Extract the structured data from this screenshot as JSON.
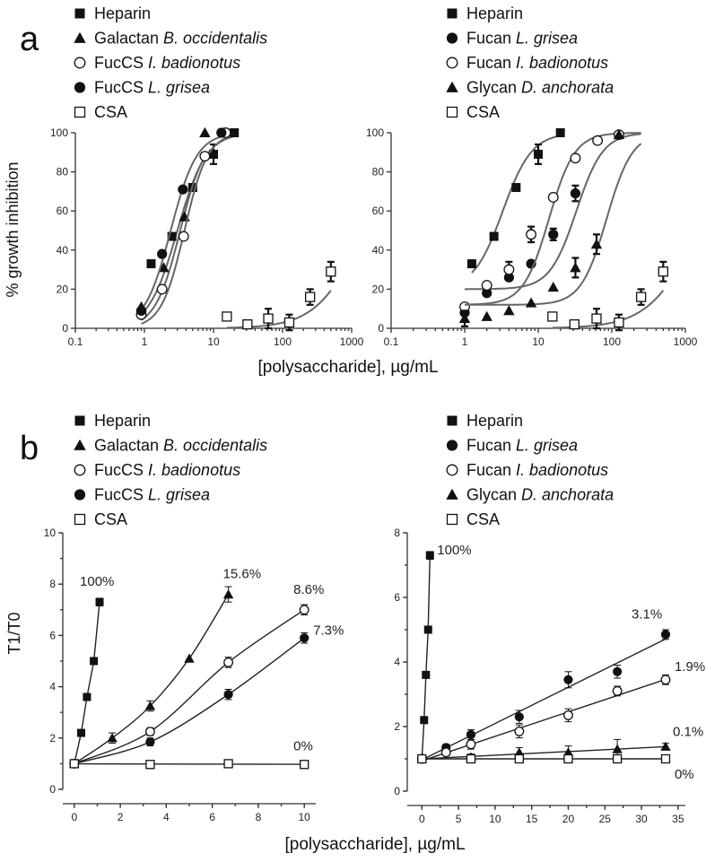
{
  "panel_labels": {
    "a": "a",
    "b": "b"
  },
  "axis_labels": {
    "a_y": "% growth inhibition",
    "a_x": "[polysaccharide], µg/mL",
    "b_y": "T1/T0",
    "b_x": "[polysaccharide], µg/mL"
  },
  "legends": {
    "left": [
      {
        "marker": "filled-square",
        "prefix": "Heparin",
        "italic": ""
      },
      {
        "marker": "filled-triangle",
        "prefix": "Galactan ",
        "italic": "B. occidentalis"
      },
      {
        "marker": "open-circle",
        "prefix": "FucCS ",
        "italic": "I. badionotus"
      },
      {
        "marker": "filled-circle",
        "prefix": "FucCS ",
        "italic": "L. grisea"
      },
      {
        "marker": "open-square",
        "prefix": "CSA",
        "italic": ""
      }
    ],
    "right": [
      {
        "marker": "filled-square",
        "prefix": "Heparin",
        "italic": ""
      },
      {
        "marker": "filled-circle",
        "prefix": "Fucan ",
        "italic": "L. grisea"
      },
      {
        "marker": "open-circle",
        "prefix": "Fucan ",
        "italic": "I. badionotus"
      },
      {
        "marker": "filled-triangle",
        "prefix": "Glycan ",
        "italic": "D. anchorata"
      },
      {
        "marker": "open-square",
        "prefix": "CSA",
        "italic": ""
      }
    ]
  },
  "colors": {
    "marker": "#111111",
    "curve": "#666666",
    "axis": "#333333"
  },
  "chart_data": [
    {
      "id": "a-left",
      "type": "scatter",
      "x_scale": "log",
      "xlim": [
        0.1,
        1000
      ],
      "ylim": [
        0,
        100
      ],
      "x_ticks": [
        0.1,
        1,
        10,
        100,
        1000
      ],
      "x_tick_labels": [
        "0.1",
        "1",
        "10",
        "100",
        "1000"
      ],
      "y_ticks": [
        0,
        20,
        40,
        60,
        80,
        100
      ],
      "y_tick_labels": [
        "0",
        "20",
        "40",
        "60",
        "80",
        "100"
      ],
      "series": [
        {
          "marker": "filled-square",
          "x": [
            1.25,
            2.5,
            5,
            10,
            20
          ],
          "y": [
            33,
            47,
            72,
            89,
            100
          ],
          "err": [
            0,
            0,
            0,
            5,
            0
          ],
          "fit": {
            "bottom": 0,
            "top": 100,
            "ec50": 3.0,
            "hill": 2.1,
            "xmin": 0.95,
            "xmax": 20
          }
        },
        {
          "marker": "filled-triangle",
          "x": [
            0.9,
            1.9,
            3.8,
            7.5
          ],
          "y": [
            11,
            31,
            57,
            100
          ],
          "err": [
            0,
            0,
            0,
            0
          ],
          "fit": {
            "bottom": 0,
            "top": 100,
            "ec50": 3.3,
            "hill": 2.4,
            "xmin": 0.9,
            "xmax": 8
          }
        },
        {
          "marker": "open-circle",
          "x": [
            0.9,
            1.8,
            3.7,
            7.5,
            15
          ],
          "y": [
            7,
            20,
            47,
            88,
            100
          ],
          "err": [
            0,
            0,
            0,
            0,
            0
          ],
          "fit": {
            "bottom": 0,
            "top": 100,
            "ec50": 3.8,
            "hill": 2.6,
            "xmin": 0.9,
            "xmax": 15
          }
        },
        {
          "marker": "filled-circle",
          "x": [
            0.9,
            1.8,
            3.6,
            13
          ],
          "y": [
            9,
            38,
            71,
            100
          ],
          "err": [
            0,
            0,
            0,
            0
          ],
          "fit": {
            "bottom": 0,
            "top": 100,
            "ec50": 2.4,
            "hill": 2.3,
            "xmin": 0.9,
            "xmax": 13
          }
        },
        {
          "marker": "open-square",
          "x": [
            15.6,
            31,
            62,
            125,
            250,
            500
          ],
          "y": [
            6,
            2,
            5,
            3,
            16,
            29
          ],
          "err": [
            0,
            2,
            5,
            4,
            4,
            5
          ],
          "fit": {
            "bottom": 0,
            "top": 100,
            "ec50": 1500,
            "hill": 1.3,
            "xmin": 15.6,
            "xmax": 500
          }
        }
      ]
    },
    {
      "id": "a-right",
      "type": "scatter",
      "x_scale": "log",
      "xlim": [
        0.1,
        1000
      ],
      "ylim": [
        0,
        100
      ],
      "x_ticks": [
        0.1,
        1,
        10,
        100,
        1000
      ],
      "x_tick_labels": [
        "0.1",
        "1",
        "10",
        "100",
        "1000"
      ],
      "y_ticks": [
        0,
        20,
        40,
        60,
        80,
        100
      ],
      "y_tick_labels": [
        "0",
        "20",
        "40",
        "60",
        "80",
        "100"
      ],
      "series": [
        {
          "marker": "filled-square",
          "x": [
            1.25,
            2.5,
            5,
            10,
            20
          ],
          "y": [
            33,
            47,
            72,
            89,
            100
          ],
          "err": [
            0,
            0,
            0,
            5,
            0
          ],
          "fit": {
            "bottom": 20,
            "top": 100,
            "ec50": 3.3,
            "hill": 2.2,
            "xmin": 1.25,
            "xmax": 20
          }
        },
        {
          "marker": "filled-circle",
          "x": [
            1,
            2,
            4,
            8,
            16,
            32,
            64
          ],
          "y": [
            8,
            18,
            26,
            33,
            48,
            69,
            96
          ],
          "err": [
            0,
            0,
            0,
            0,
            3,
            4,
            0
          ],
          "fit": {
            "bottom": 20,
            "top": 100,
            "ec50": 33,
            "hill": 2.4,
            "xmin": 1,
            "xmax": 250
          }
        },
        {
          "marker": "open-circle",
          "x": [
            1,
            2,
            4,
            8,
            16,
            32,
            64,
            125
          ],
          "y": [
            11,
            22,
            30,
            48,
            67,
            87,
            96,
            99
          ],
          "err": [
            0,
            0,
            4,
            4,
            0,
            0,
            0,
            0
          ],
          "fit": {
            "bottom": 12,
            "top": 100,
            "ec50": 14,
            "hill": 2.5,
            "xmin": 1,
            "xmax": 250
          }
        },
        {
          "marker": "filled-triangle",
          "x": [
            1,
            2,
            4,
            8,
            16,
            32,
            62,
            125
          ],
          "y": [
            5,
            6,
            9,
            13,
            21,
            31,
            43,
            99
          ],
          "err": [
            4,
            0,
            0,
            0,
            0,
            5,
            5,
            0
          ],
          "fit": {
            "bottom": 12,
            "top": 100,
            "ec50": 85,
            "hill": 2.5,
            "xmin": 1,
            "xmax": 250
          }
        },
        {
          "marker": "open-square",
          "x": [
            15.6,
            31,
            62,
            125,
            250,
            500
          ],
          "y": [
            6,
            2,
            5,
            3,
            16,
            29
          ],
          "err": [
            0,
            2,
            5,
            4,
            4,
            5
          ],
          "fit": {
            "bottom": 0,
            "top": 100,
            "ec50": 1500,
            "hill": 1.3,
            "xmin": 15.6,
            "xmax": 500
          }
        }
      ]
    },
    {
      "id": "b-left",
      "type": "line",
      "x_scale": "linear",
      "xlim": [
        -0.5,
        10.5
      ],
      "ylim": [
        0,
        10
      ],
      "x_ticks": [
        0,
        2,
        4,
        6,
        8,
        10
      ],
      "x_tick_labels": [
        "0",
        "2",
        "4",
        "6",
        "8",
        "10"
      ],
      "y_ticks": [
        0,
        2,
        4,
        6,
        8,
        10
      ],
      "y_tick_labels": [
        "0",
        "2",
        "4",
        "6",
        "8",
        "10"
      ],
      "series": [
        {
          "marker": "filled-square",
          "x": [
            0,
            0.3,
            0.55,
            0.85,
            1.1
          ],
          "y": [
            1.0,
            2.2,
            3.6,
            5.0,
            7.3
          ],
          "err": [
            0,
            0,
            0,
            0,
            0.15
          ],
          "curve": "linear",
          "label": "100%"
        },
        {
          "marker": "filled-triangle",
          "x": [
            0,
            1.65,
            3.3,
            5.0,
            6.7
          ],
          "y": [
            1.0,
            2.0,
            3.25,
            5.1,
            7.6
          ],
          "err": [
            0,
            0.2,
            0.2,
            0,
            0.3
          ],
          "curve": "smooth",
          "label": "15.6%"
        },
        {
          "marker": "open-circle",
          "x": [
            0,
            3.3,
            6.7,
            10.0
          ],
          "y": [
            1.0,
            2.25,
            4.95,
            7.0
          ],
          "err": [
            0,
            0.15,
            0.2,
            0.2
          ],
          "curve": "smooth",
          "label": "8.6%"
        },
        {
          "marker": "filled-circle",
          "x": [
            0,
            3.3,
            6.7,
            10.0
          ],
          "y": [
            1.0,
            1.85,
            3.7,
            5.9
          ],
          "err": [
            0,
            0.15,
            0.2,
            0.2
          ],
          "curve": "smooth",
          "label": "7.3%"
        },
        {
          "marker": "open-square",
          "x": [
            0,
            3.3,
            6.7,
            10.0
          ],
          "y": [
            1.0,
            0.97,
            1.0,
            0.97
          ],
          "err": [
            0,
            0.15,
            0.1,
            0.1
          ],
          "curve": "linear",
          "label": "0%"
        }
      ]
    },
    {
      "id": "b-right",
      "type": "line",
      "x_scale": "linear",
      "xlim": [
        -2,
        36
      ],
      "ylim": [
        0,
        8
      ],
      "x_ticks": [
        0,
        5,
        10,
        15,
        20,
        25,
        30,
        35
      ],
      "x_tick_labels": [
        "0",
        "5",
        "10",
        "15",
        "20",
        "25",
        "30",
        "35"
      ],
      "y_ticks": [
        0,
        2,
        4,
        6,
        8
      ],
      "y_tick_labels": [
        "0",
        "2",
        "4",
        "6",
        "8"
      ],
      "series": [
        {
          "marker": "filled-square",
          "x": [
            0,
            0.3,
            0.55,
            0.85,
            1.1
          ],
          "y": [
            1.0,
            2.2,
            3.6,
            5.0,
            7.3
          ],
          "err": [
            0,
            0,
            0,
            0,
            0.12
          ],
          "curve": "linear",
          "label": "100%"
        },
        {
          "marker": "filled-circle",
          "x": [
            0,
            3.3,
            6.7,
            13.3,
            20,
            26.7,
            33.3
          ],
          "y": [
            1.0,
            1.35,
            1.75,
            2.3,
            3.45,
            3.7,
            4.85
          ],
          "err": [
            0,
            0.1,
            0.15,
            0.2,
            0.25,
            0.2,
            0.15
          ],
          "curve": "linear",
          "label": "3.1%"
        },
        {
          "marker": "open-circle",
          "x": [
            0,
            3.3,
            6.7,
            13.3,
            20,
            26.7,
            33.3
          ],
          "y": [
            1.0,
            1.2,
            1.45,
            1.85,
            2.35,
            3.1,
            3.45
          ],
          "err": [
            0,
            0.1,
            0.15,
            0.2,
            0.2,
            0.15,
            0.15
          ],
          "curve": "linear",
          "label": "1.9%"
        },
        {
          "marker": "filled-triangle",
          "x": [
            0,
            6.7,
            13.3,
            20,
            26.7,
            33.3
          ],
          "y": [
            1.0,
            1.05,
            1.2,
            1.2,
            1.3,
            1.38
          ],
          "err": [
            0,
            0.1,
            0.15,
            0.2,
            0.3,
            0.1
          ],
          "curve": "linear",
          "label": "0.1%"
        },
        {
          "marker": "open-square",
          "x": [
            0,
            6.7,
            13.3,
            20,
            26.7,
            33.3
          ],
          "y": [
            1.0,
            1.0,
            1.0,
            1.0,
            1.0,
            1.0
          ],
          "err": [
            0,
            0.1,
            0.1,
            0.1,
            0.1,
            0.05
          ],
          "curve": "linear",
          "label": "0%"
        }
      ]
    }
  ]
}
